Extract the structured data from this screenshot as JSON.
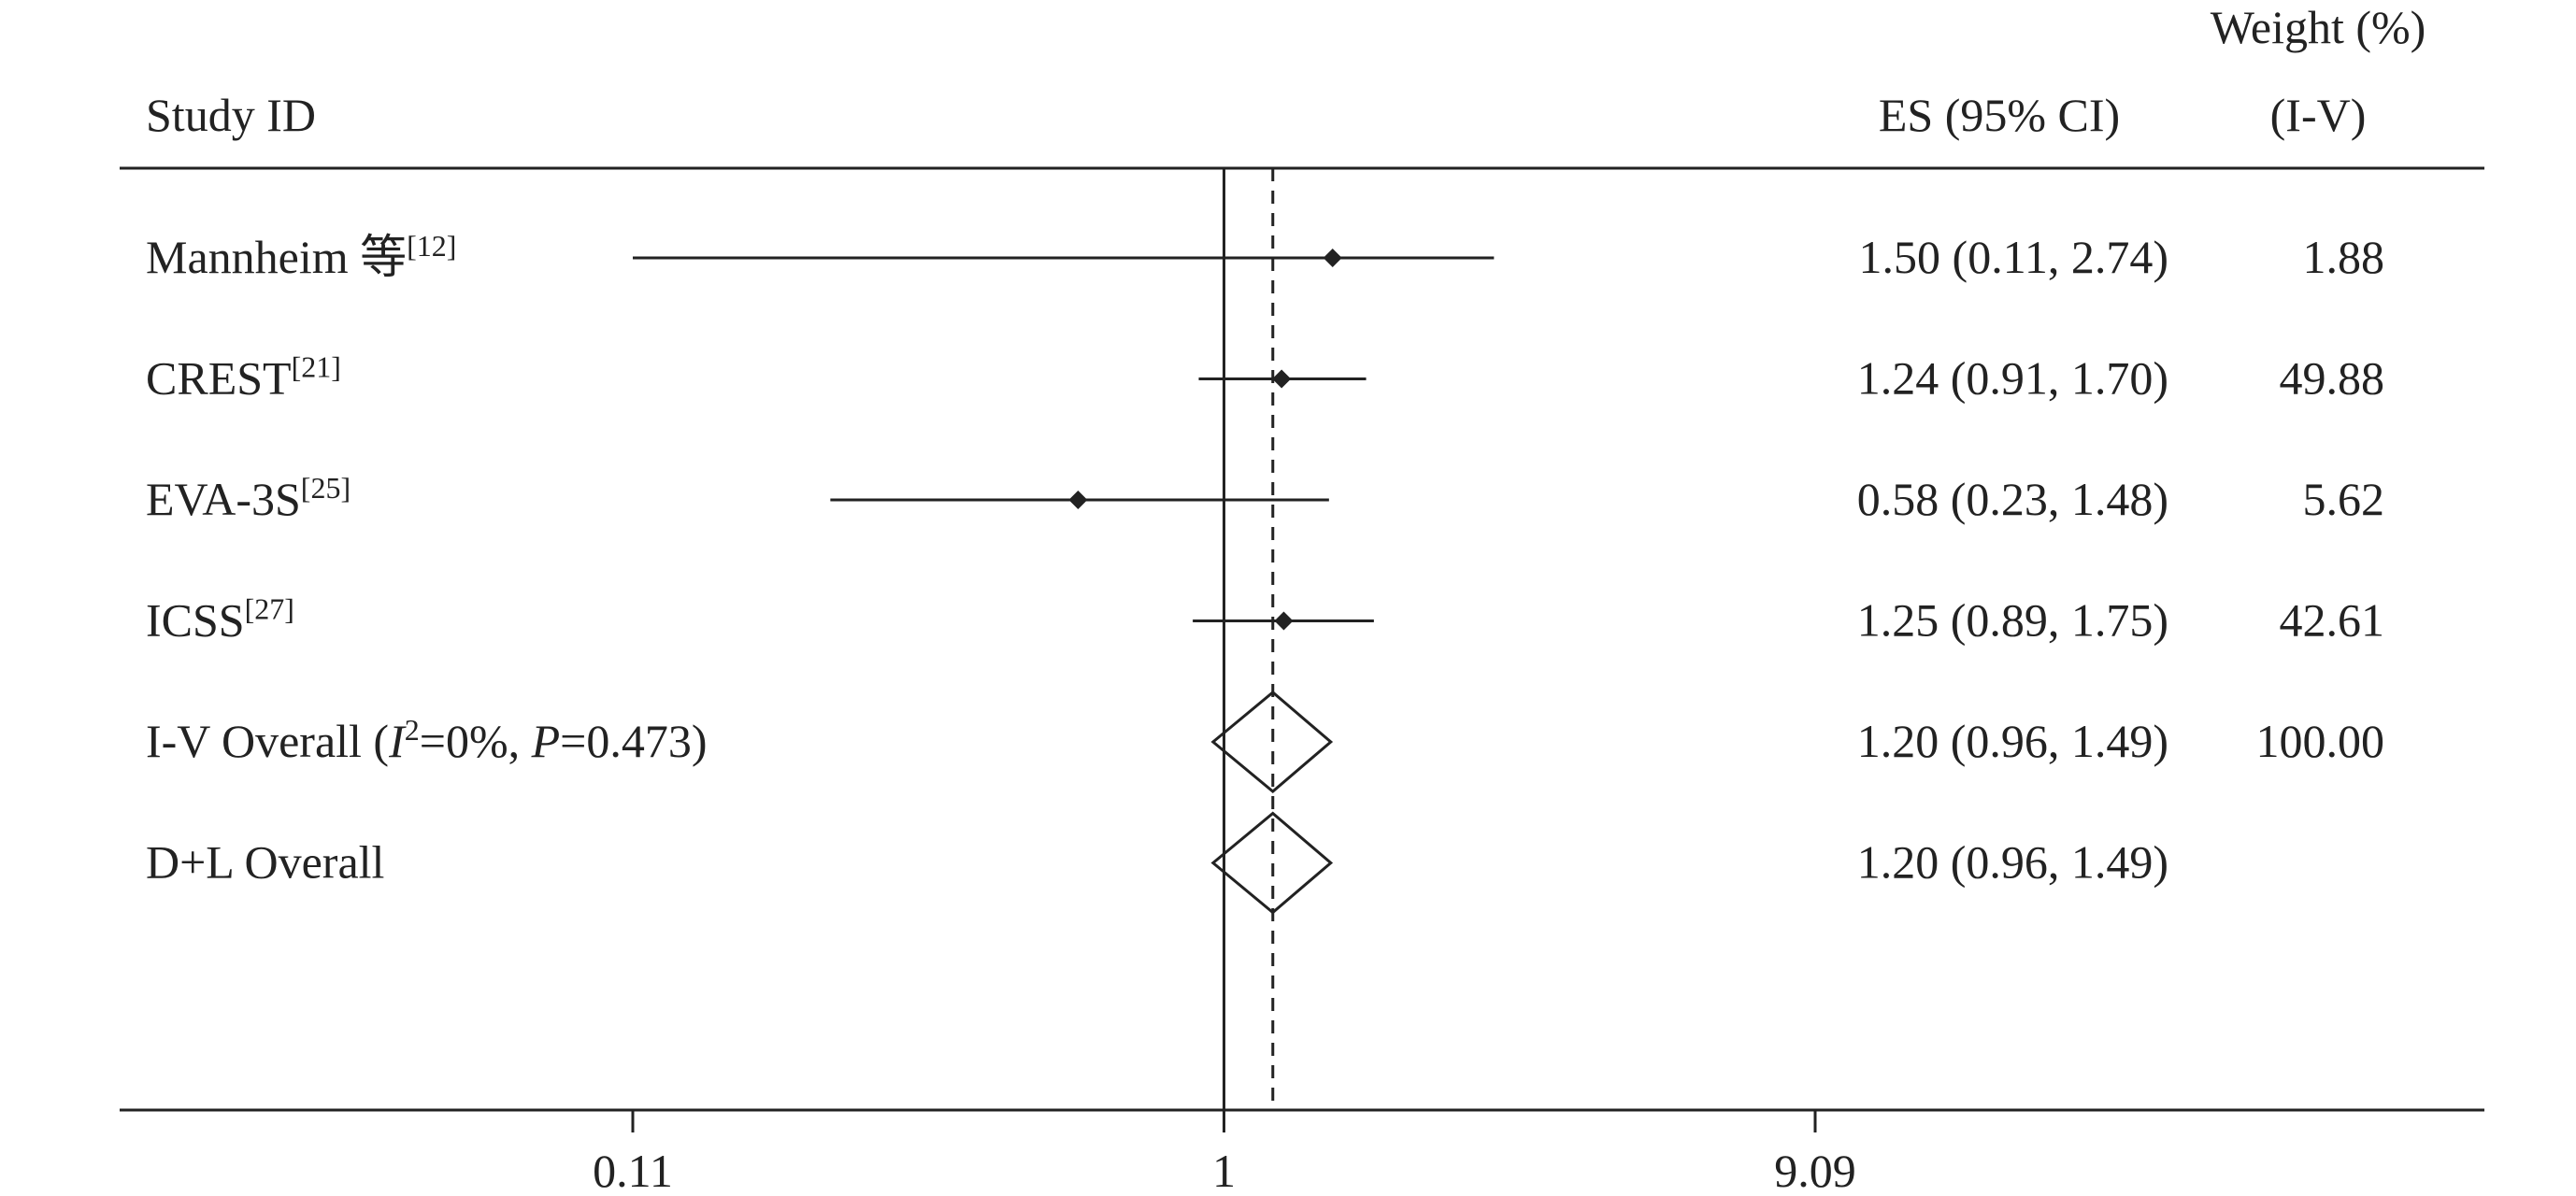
{
  "header": {
    "weight_top": "Weight (%)",
    "study": "Study ID",
    "es": "ES (95% CI)",
    "weight_bottom": "(I-V)"
  },
  "chart_data": {
    "type": "forest",
    "log_x": true,
    "xlim": [
      0.11,
      9.09
    ],
    "xticks": [
      0.11,
      1,
      9.09
    ],
    "null_line": 1,
    "color": "#222222",
    "rows": [
      {
        "kind": "study",
        "label_parts": [
          {
            "text": "Mannheim 等"
          },
          {
            "text": "[12]",
            "style": "sup"
          }
        ],
        "es": 1.5,
        "lower": 0.11,
        "upper": 2.74,
        "es_ci": "1.50 (0.11, 2.74)",
        "weight": "1.88"
      },
      {
        "kind": "study",
        "label_parts": [
          {
            "text": "CREST"
          },
          {
            "text": "[21]",
            "style": "sup"
          }
        ],
        "es": 1.24,
        "lower": 0.91,
        "upper": 1.7,
        "es_ci": "1.24 (0.91, 1.70)",
        "weight": "49.88"
      },
      {
        "kind": "study",
        "label_parts": [
          {
            "text": "EVA-3S"
          },
          {
            "text": "[25]",
            "style": "sup"
          }
        ],
        "es": 0.58,
        "lower": 0.23,
        "upper": 1.48,
        "es_ci": "0.58 (0.23, 1.48)",
        "weight": "5.62"
      },
      {
        "kind": "study",
        "label_parts": [
          {
            "text": "ICSS"
          },
          {
            "text": "[27]",
            "style": "sup"
          }
        ],
        "es": 1.25,
        "lower": 0.89,
        "upper": 1.75,
        "es_ci": "1.25 (0.89, 1.75)",
        "weight": "42.61"
      },
      {
        "kind": "overall",
        "label_parts": [
          {
            "text": "I-V Overall  ("
          },
          {
            "text": "I",
            "style": "italic"
          },
          {
            "text": "2",
            "style": "sup"
          },
          {
            "text": "=0%, "
          },
          {
            "text": "P",
            "style": "italic"
          },
          {
            "text": "=0.473)"
          }
        ],
        "es": 1.2,
        "lower": 0.96,
        "upper": 1.49,
        "es_ci": "1.20 (0.96, 1.49)",
        "weight": "100.00"
      },
      {
        "kind": "overall",
        "label_parts": [
          {
            "text": "D+L Overall"
          }
        ],
        "es": 1.2,
        "lower": 0.96,
        "upper": 1.49,
        "es_ci": "1.20 (0.96, 1.49)"
      }
    ]
  }
}
